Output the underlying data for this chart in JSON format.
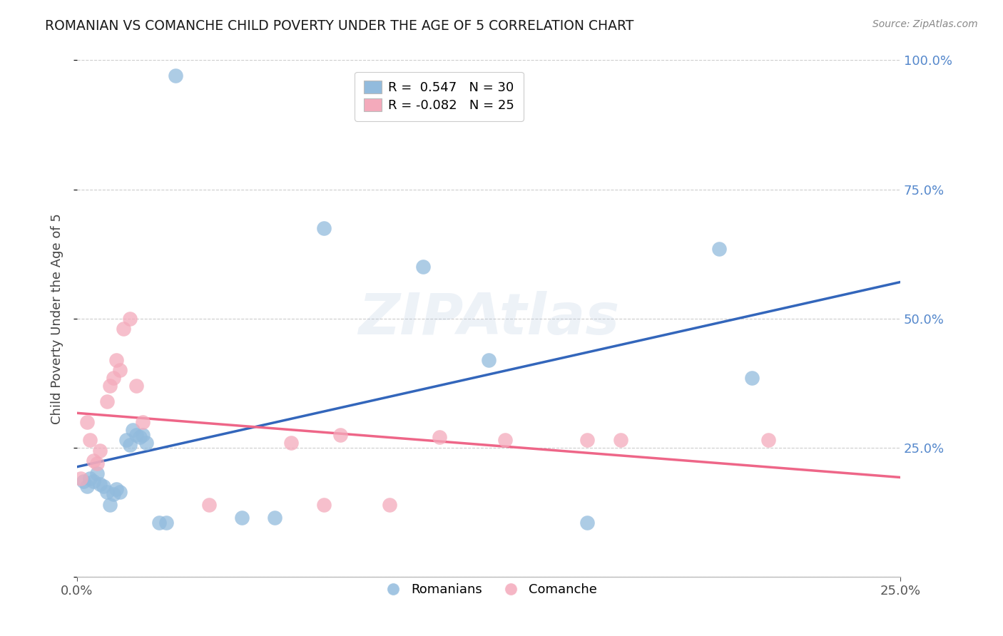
{
  "title": "ROMANIAN VS COMANCHE CHILD POVERTY UNDER THE AGE OF 5 CORRELATION CHART",
  "source": "Source: ZipAtlas.com",
  "ylabel": "Child Poverty Under the Age of 5",
  "xlim": [
    0.0,
    0.25
  ],
  "ylim": [
    0.0,
    1.0
  ],
  "legend_labels": [
    "Romanians",
    "Comanche"
  ],
  "blue_R": 0.547,
  "blue_N": 30,
  "pink_R": -0.082,
  "pink_N": 25,
  "blue_color": "#92BBDD",
  "pink_color": "#F4AABB",
  "blue_line_color": "#3366BB",
  "pink_line_color": "#EE6688",
  "watermark": "ZIPAtlas",
  "blue_points": [
    [
      0.002,
      0.185
    ],
    [
      0.003,
      0.175
    ],
    [
      0.004,
      0.19
    ],
    [
      0.005,
      0.185
    ],
    [
      0.006,
      0.2
    ],
    [
      0.007,
      0.18
    ],
    [
      0.008,
      0.175
    ],
    [
      0.009,
      0.165
    ],
    [
      0.01,
      0.14
    ],
    [
      0.011,
      0.16
    ],
    [
      0.012,
      0.17
    ],
    [
      0.013,
      0.165
    ],
    [
      0.015,
      0.265
    ],
    [
      0.016,
      0.255
    ],
    [
      0.017,
      0.285
    ],
    [
      0.018,
      0.275
    ],
    [
      0.019,
      0.27
    ],
    [
      0.02,
      0.275
    ],
    [
      0.021,
      0.26
    ],
    [
      0.025,
      0.105
    ],
    [
      0.027,
      0.105
    ],
    [
      0.03,
      0.97
    ],
    [
      0.05,
      0.115
    ],
    [
      0.06,
      0.115
    ],
    [
      0.075,
      0.675
    ],
    [
      0.105,
      0.6
    ],
    [
      0.125,
      0.42
    ],
    [
      0.155,
      0.105
    ],
    [
      0.195,
      0.635
    ],
    [
      0.205,
      0.385
    ]
  ],
  "pink_points": [
    [
      0.001,
      0.19
    ],
    [
      0.003,
      0.3
    ],
    [
      0.004,
      0.265
    ],
    [
      0.005,
      0.225
    ],
    [
      0.006,
      0.22
    ],
    [
      0.007,
      0.245
    ],
    [
      0.009,
      0.34
    ],
    [
      0.01,
      0.37
    ],
    [
      0.011,
      0.385
    ],
    [
      0.012,
      0.42
    ],
    [
      0.013,
      0.4
    ],
    [
      0.014,
      0.48
    ],
    [
      0.016,
      0.5
    ],
    [
      0.018,
      0.37
    ],
    [
      0.02,
      0.3
    ],
    [
      0.04,
      0.14
    ],
    [
      0.065,
      0.26
    ],
    [
      0.075,
      0.14
    ],
    [
      0.08,
      0.275
    ],
    [
      0.095,
      0.14
    ],
    [
      0.11,
      0.27
    ],
    [
      0.13,
      0.265
    ],
    [
      0.155,
      0.265
    ],
    [
      0.165,
      0.265
    ],
    [
      0.21,
      0.265
    ]
  ],
  "background_color": "#FFFFFF",
  "grid_color": "#CCCCCC"
}
